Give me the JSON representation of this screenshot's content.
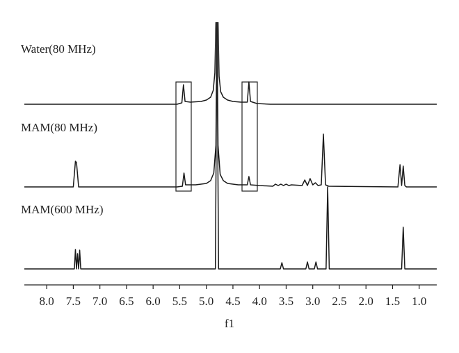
{
  "chart_data": {
    "type": "line",
    "xlabel": "f1",
    "xlim": [
      8.42,
      0.67
    ],
    "xticks": [
      8.0,
      7.5,
      7.0,
      6.5,
      6.0,
      5.5,
      5.0,
      4.5,
      4.0,
      3.5,
      3.0,
      2.5,
      2.0,
      1.5,
      1.0
    ],
    "series": [
      {
        "name": "Water(80 MHz)",
        "color": "#1a1a1a",
        "x": [
          8.42,
          5.55,
          5.46,
          5.43,
          5.4,
          5.3,
          5.1,
          5.0,
          4.92,
          4.87,
          4.84,
          4.82,
          4.8,
          4.78,
          4.76,
          4.73,
          4.68,
          4.6,
          4.5,
          4.35,
          4.23,
          4.2,
          4.17,
          4.05,
          3.8,
          0.67
        ],
        "values": [
          0,
          0,
          2,
          28,
          4,
          3,
          4,
          6,
          10,
          20,
          45,
          118,
          118,
          118,
          40,
          18,
          10,
          6,
          4,
          3,
          3,
          32,
          4,
          1,
          0,
          0
        ]
      },
      {
        "name": "MAM(80 MHz)",
        "color": "#1a1a1a",
        "x": [
          8.42,
          7.5,
          7.46,
          7.44,
          7.4,
          5.55,
          5.45,
          5.42,
          5.39,
          5.2,
          5.0,
          4.92,
          4.86,
          4.82,
          4.8,
          4.78,
          4.74,
          4.68,
          4.6,
          4.4,
          4.23,
          4.2,
          4.17,
          4.0,
          3.75,
          3.7,
          3.65,
          3.6,
          3.55,
          3.5,
          3.45,
          3.4,
          3.2,
          3.15,
          3.1,
          3.05,
          3.0,
          2.95,
          2.9,
          2.84,
          2.8,
          2.76,
          2.7,
          1.4,
          1.36,
          1.33,
          1.3,
          1.27,
          1.24,
          0.67
        ],
        "values": [
          0,
          0,
          37,
          35,
          0,
          0,
          1,
          20,
          3,
          3,
          5,
          9,
          20,
          60,
          237,
          60,
          18,
          9,
          5,
          3,
          3,
          15,
          3,
          2,
          1,
          4,
          2,
          4,
          2,
          4,
          2,
          3,
          2,
          10,
          2,
          12,
          3,
          6,
          2,
          3,
          76,
          3,
          1,
          0,
          32,
          2,
          30,
          2,
          0,
          0
        ]
      },
      {
        "name": "MAM(600 MHz)",
        "color": "#1a1a1a",
        "x": [
          8.42,
          7.48,
          7.46,
          7.44,
          7.42,
          7.4,
          7.38,
          7.36,
          7.34,
          4.83,
          4.8,
          4.77,
          3.61,
          3.58,
          3.55,
          3.13,
          3.1,
          3.07,
          2.97,
          2.94,
          2.91,
          2.75,
          2.72,
          2.69,
          1.33,
          1.3,
          1.27,
          0.67
        ],
        "values": [
          0,
          0,
          28,
          0,
          22,
          0,
          27,
          0,
          0,
          0,
          355,
          0,
          0,
          9,
          0,
          0,
          10,
          0,
          0,
          10,
          0,
          0,
          118,
          0,
          0,
          60,
          0,
          0
        ]
      }
    ]
  }
}
